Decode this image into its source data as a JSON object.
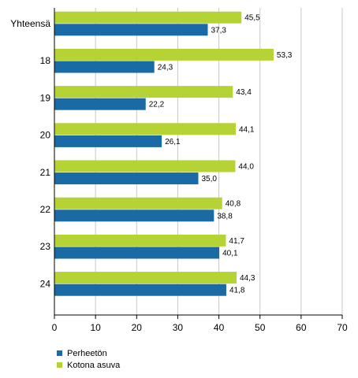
{
  "chart_data": {
    "type": "bar",
    "orientation": "horizontal",
    "categories": [
      "Yhteensä",
      "18",
      "19",
      "20",
      "21",
      "22",
      "23",
      "24"
    ],
    "series": [
      {
        "name": "Kotona asuva",
        "color": "#b5d334",
        "values": [
          45.5,
          53.3,
          43.4,
          44.1,
          44.0,
          40.8,
          41.7,
          44.3
        ],
        "labels": [
          "45,5",
          "53,3",
          "43,4",
          "44,1",
          "44,0",
          "40,8",
          "41,7",
          "44,3"
        ]
      },
      {
        "name": "Perheetön",
        "color": "#1a6aa5",
        "values": [
          37.3,
          24.3,
          22.2,
          26.1,
          35.0,
          38.8,
          40.1,
          41.8
        ],
        "labels": [
          "37,3",
          "24,3",
          "22,2",
          "26,1",
          "35,0",
          "38,8",
          "40,1",
          "41,8"
        ]
      }
    ],
    "xlim": [
      0,
      70
    ],
    "xticks": [
      "0",
      "10",
      "20",
      "30",
      "40",
      "50",
      "60",
      "70"
    ],
    "grid": true,
    "legend_position": "bottom-left"
  },
  "legend": {
    "items": [
      {
        "label": "Perheetön",
        "color": "#1a6aa5"
      },
      {
        "label": "Kotona asuva",
        "color": "#b5d334"
      }
    ]
  }
}
